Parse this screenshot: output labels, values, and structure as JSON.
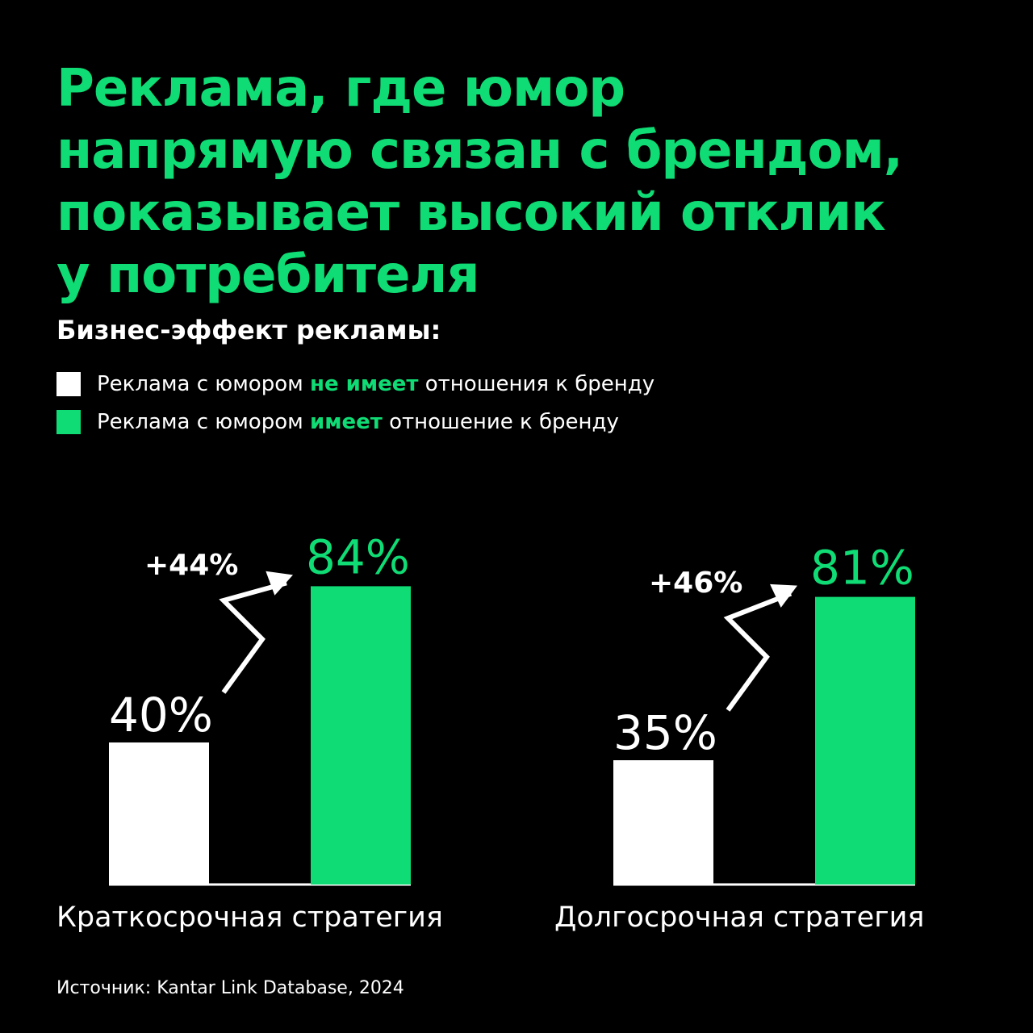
{
  "title_lines": [
    "Реклама, где юмор",
    "напрямую связан с брендом,",
    "показывает высокий отклик",
    "у потребителя"
  ],
  "subtitle": "Бизнес-эффект рекламы:",
  "legend": [
    {
      "before": "Реклама с юмором ",
      "highlight": "не имеет",
      "after": " отношения к бренду",
      "color": "#ffffff"
    },
    {
      "before": "Реклама с юмором ",
      "highlight": "имеет",
      "after": " отношение к бренду",
      "color": "#0fdc74"
    }
  ],
  "source": "Источник: Kantar Link Database, 2024",
  "colors": {
    "accent": "#0fdc74",
    "white": "#ffffff",
    "background": "#000000"
  },
  "chart_data": {
    "type": "bar",
    "categories": [
      "Краткосрочная стратегия",
      "Долгосрочная стратегия"
    ],
    "series": [
      {
        "name": "Реклама с юмором не имеет отношения к бренду",
        "values": [
          40,
          35
        ],
        "labels": [
          "40%",
          "35%"
        ]
      },
      {
        "name": "Реклама с юмором имеет отношение к бренду",
        "values": [
          84,
          81
        ],
        "labels": [
          "84%",
          "81%"
        ]
      }
    ],
    "annotations": [
      "+44%",
      "+46%"
    ],
    "ylim": [
      0,
      100
    ],
    "grid": false,
    "legend": "top-left"
  }
}
